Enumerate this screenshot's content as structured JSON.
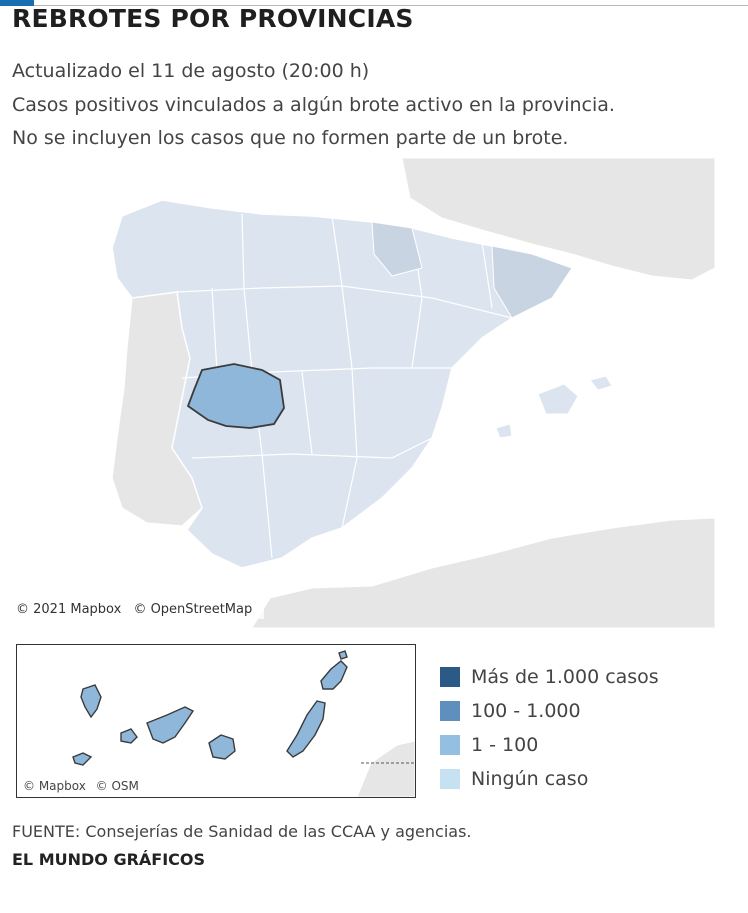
{
  "header": {
    "title": "REBROTES POR PROVINCIAS",
    "updated": "Actualizado el 11 de agosto (20:00 h)",
    "description_line1": "Casos positivos vinculados a algún brote activo en la provincia.",
    "description_line2": "No se incluyen los casos que no formen parte de un brote."
  },
  "map": {
    "attribution_mapbox": "© 2021 Mapbox",
    "attribution_osm": "© OpenStreetMap",
    "highlighted_province_fill": "#8fb7d9",
    "province_fill": "#dce4ef",
    "outside_land_fill": "#e8e8e8",
    "sea_fill": "#ffffff"
  },
  "canary_inset": {
    "attribution_mapbox": "© Mapbox",
    "attribution_osm": "© OSM",
    "island_fill": "#8fb7d9"
  },
  "legend": {
    "items": [
      {
        "label": "Más de 1.000 casos",
        "color": "#2b5a86"
      },
      {
        "label": "100 - 1.000",
        "color": "#5f8fbd"
      },
      {
        "label": "1 - 100",
        "color": "#94bfe1"
      },
      {
        "label": "Ningún caso",
        "color": "#c6e1f2"
      }
    ]
  },
  "footer": {
    "source": "FUENTE: Consejerías de Sanidad de las CCAA y agencias.",
    "credit": "EL MUNDO GRÁFICOS"
  }
}
